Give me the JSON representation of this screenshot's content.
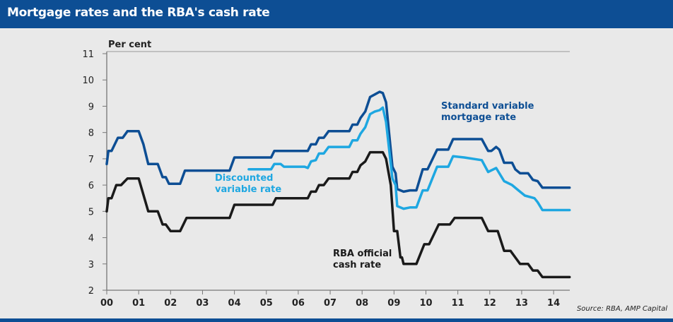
{
  "title": "Mortgage rates and the RBA's cash rate",
  "source": "Source: RBA, AMP Capital",
  "chart_data": {
    "type": "line",
    "title": "Mortgage rates and the RBA's cash rate",
    "ylabel": "Per cent",
    "xlabel": "",
    "ylim": [
      2,
      11
    ],
    "xlim": [
      0,
      14.5
    ],
    "yticks": [
      "2",
      "3",
      "4",
      "5",
      "6",
      "7",
      "8",
      "9",
      "10",
      "11"
    ],
    "xticks": [
      "00",
      "01",
      "02",
      "03",
      "04",
      "05",
      "06",
      "07",
      "08",
      "09",
      "10",
      "11",
      "12",
      "13",
      "14"
    ],
    "grid": false,
    "colors": {
      "standard": "#0d4e94",
      "discounted": "#1ea7e1",
      "cash": "#1a1a1a"
    },
    "series": [
      {
        "name": "Standard variable mortgage rate",
        "key": "standard",
        "points": [
          [
            0,
            6.8
          ],
          [
            0.05,
            7.3
          ],
          [
            0.15,
            7.3
          ],
          [
            0.35,
            7.8
          ],
          [
            0.5,
            7.8
          ],
          [
            0.65,
            8.05
          ],
          [
            1.0,
            8.05
          ],
          [
            1.15,
            7.55
          ],
          [
            1.3,
            6.8
          ],
          [
            1.6,
            6.8
          ],
          [
            1.75,
            6.3
          ],
          [
            1.85,
            6.3
          ],
          [
            1.95,
            6.05
          ],
          [
            2.3,
            6.05
          ],
          [
            2.45,
            6.55
          ],
          [
            3.85,
            6.55
          ],
          [
            4.0,
            7.05
          ],
          [
            5.15,
            7.05
          ],
          [
            5.25,
            7.3
          ],
          [
            6.3,
            7.3
          ],
          [
            6.4,
            7.55
          ],
          [
            6.55,
            7.55
          ],
          [
            6.65,
            7.8
          ],
          [
            6.8,
            7.8
          ],
          [
            6.95,
            8.05
          ],
          [
            7.6,
            8.05
          ],
          [
            7.7,
            8.3
          ],
          [
            7.85,
            8.3
          ],
          [
            7.95,
            8.55
          ],
          [
            8.1,
            8.8
          ],
          [
            8.25,
            9.35
          ],
          [
            8.4,
            9.45
          ],
          [
            8.55,
            9.55
          ],
          [
            8.65,
            9.5
          ],
          [
            8.75,
            9.15
          ],
          [
            8.95,
            6.7
          ],
          [
            9.05,
            6.45
          ],
          [
            9.1,
            5.85
          ],
          [
            9.3,
            5.75
          ],
          [
            9.5,
            5.8
          ],
          [
            9.7,
            5.8
          ],
          [
            9.9,
            6.6
          ],
          [
            10.05,
            6.6
          ],
          [
            10.35,
            7.35
          ],
          [
            10.7,
            7.35
          ],
          [
            10.85,
            7.75
          ],
          [
            11.75,
            7.75
          ],
          [
            11.95,
            7.3
          ],
          [
            12.05,
            7.3
          ],
          [
            12.2,
            7.45
          ],
          [
            12.3,
            7.35
          ],
          [
            12.45,
            6.85
          ],
          [
            12.7,
            6.85
          ],
          [
            12.8,
            6.6
          ],
          [
            12.95,
            6.45
          ],
          [
            13.2,
            6.45
          ],
          [
            13.35,
            6.2
          ],
          [
            13.5,
            6.15
          ],
          [
            13.65,
            5.9
          ],
          [
            14.5,
            5.9
          ]
        ]
      },
      {
        "name": "Discounted variable rate",
        "key": "discounted",
        "points": [
          [
            4.45,
            6.6
          ],
          [
            5.15,
            6.6
          ],
          [
            5.25,
            6.8
          ],
          [
            5.45,
            6.8
          ],
          [
            5.55,
            6.7
          ],
          [
            6.2,
            6.7
          ],
          [
            6.3,
            6.65
          ],
          [
            6.4,
            6.9
          ],
          [
            6.55,
            6.95
          ],
          [
            6.65,
            7.2
          ],
          [
            6.8,
            7.2
          ],
          [
            6.95,
            7.45
          ],
          [
            7.6,
            7.45
          ],
          [
            7.7,
            7.7
          ],
          [
            7.85,
            7.7
          ],
          [
            7.95,
            7.95
          ],
          [
            8.1,
            8.2
          ],
          [
            8.25,
            8.7
          ],
          [
            8.4,
            8.8
          ],
          [
            8.55,
            8.85
          ],
          [
            8.65,
            8.95
          ],
          [
            8.75,
            8.4
          ],
          [
            8.95,
            6.25
          ],
          [
            9.05,
            6.0
          ],
          [
            9.1,
            5.2
          ],
          [
            9.3,
            5.1
          ],
          [
            9.5,
            5.15
          ],
          [
            9.7,
            5.15
          ],
          [
            9.9,
            5.8
          ],
          [
            10.05,
            5.8
          ],
          [
            10.35,
            6.7
          ],
          [
            10.7,
            6.7
          ],
          [
            10.85,
            7.1
          ],
          [
            11.2,
            7.05
          ],
          [
            11.75,
            6.95
          ],
          [
            11.95,
            6.5
          ],
          [
            12.2,
            6.65
          ],
          [
            12.45,
            6.15
          ],
          [
            12.7,
            6.0
          ],
          [
            12.9,
            5.8
          ],
          [
            13.1,
            5.6
          ],
          [
            13.4,
            5.5
          ],
          [
            13.5,
            5.35
          ],
          [
            13.65,
            5.05
          ],
          [
            14.5,
            5.05
          ]
        ]
      },
      {
        "name": "RBA official cash rate",
        "key": "cash",
        "points": [
          [
            0,
            5.0
          ],
          [
            0.05,
            5.5
          ],
          [
            0.15,
            5.5
          ],
          [
            0.3,
            6.0
          ],
          [
            0.45,
            6.0
          ],
          [
            0.65,
            6.25
          ],
          [
            1.0,
            6.25
          ],
          [
            1.3,
            5.0
          ],
          [
            1.6,
            5.0
          ],
          [
            1.75,
            4.5
          ],
          [
            1.85,
            4.5
          ],
          [
            2.0,
            4.25
          ],
          [
            2.3,
            4.25
          ],
          [
            2.5,
            4.75
          ],
          [
            3.85,
            4.75
          ],
          [
            4.0,
            5.25
          ],
          [
            5.2,
            5.25
          ],
          [
            5.3,
            5.5
          ],
          [
            6.3,
            5.5
          ],
          [
            6.4,
            5.75
          ],
          [
            6.55,
            5.75
          ],
          [
            6.65,
            6.0
          ],
          [
            6.8,
            6.0
          ],
          [
            6.95,
            6.25
          ],
          [
            7.6,
            6.25
          ],
          [
            7.7,
            6.5
          ],
          [
            7.85,
            6.5
          ],
          [
            7.95,
            6.75
          ],
          [
            8.1,
            6.9
          ],
          [
            8.25,
            7.25
          ],
          [
            8.65,
            7.25
          ],
          [
            8.75,
            7.0
          ],
          [
            8.9,
            6.0
          ],
          [
            9.0,
            4.25
          ],
          [
            9.1,
            4.25
          ],
          [
            9.2,
            3.25
          ],
          [
            9.25,
            3.25
          ],
          [
            9.3,
            3.0
          ],
          [
            9.7,
            3.0
          ],
          [
            9.95,
            3.75
          ],
          [
            10.1,
            3.75
          ],
          [
            10.4,
            4.5
          ],
          [
            10.75,
            4.5
          ],
          [
            10.9,
            4.75
          ],
          [
            11.75,
            4.75
          ],
          [
            11.95,
            4.25
          ],
          [
            12.25,
            4.25
          ],
          [
            12.45,
            3.5
          ],
          [
            12.65,
            3.5
          ],
          [
            12.8,
            3.25
          ],
          [
            12.95,
            3.0
          ],
          [
            13.2,
            3.0
          ],
          [
            13.35,
            2.75
          ],
          [
            13.5,
            2.75
          ],
          [
            13.65,
            2.5
          ],
          [
            14.5,
            2.5
          ]
        ]
      }
    ],
    "labels": {
      "standard": "Standard variable mortgage rate",
      "discounted": "Discounted variable rate",
      "cash": "RBA official cash rate"
    },
    "label_lines": {
      "standard": [
        "Standard variable",
        "mortgage rate"
      ],
      "discounted": [
        "Discounted",
        "variable rate"
      ],
      "cash": [
        "RBA official",
        "cash rate"
      ]
    }
  }
}
